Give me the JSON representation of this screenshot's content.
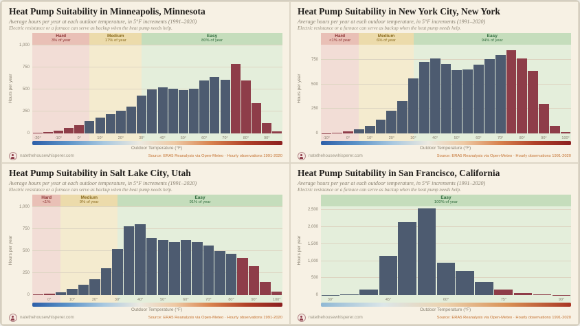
{
  "shared": {
    "subtitle": "Average hours per year at each outdoor temperature, in 5°F increments (1991–2020)",
    "note": "Electric resistance or a furnace can serve as backup when the heat pump needs help.",
    "ylabel": "Hours per year",
    "xlabel": "Outdoor Temperature (°F)",
    "site": "natethehousewhisperer.com",
    "source": "Source: ERA5 Reanalysis via Open-Meteo · Hourly observations 1991-2020"
  },
  "colors": {
    "bar": "#4d5b70",
    "bar_accent": "#8e3d49",
    "grid": "#ddd5c2",
    "boundary": "#ab9d83"
  },
  "charts": [
    {
      "title": "Heat Pump Suitability in Minneapolis, Minnesota",
      "chart_data": {
        "type": "bar",
        "xlabel_units": "°F",
        "x": [
          -20,
          -15,
          -10,
          -5,
          0,
          5,
          10,
          15,
          20,
          25,
          30,
          35,
          40,
          45,
          50,
          55,
          60,
          65,
          70,
          75,
          80,
          85,
          90,
          95
        ],
        "values": [
          8,
          18,
          35,
          60,
          95,
          140,
          180,
          215,
          260,
          300,
          430,
          500,
          525,
          505,
          490,
          505,
          600,
          640,
          605,
          790,
          600,
          340,
          120,
          25
        ],
        "ymax": 1000,
        "ytick_values": [
          0,
          250,
          500,
          750,
          1000
        ],
        "ytick_labels": [
          "0",
          "250",
          "500",
          "750",
          "1,000"
        ],
        "xticks": [
          -20,
          -10,
          0,
          10,
          20,
          30,
          40,
          50,
          60,
          70,
          80,
          90
        ],
        "hard_below": 5,
        "hot_from": 75,
        "zones": [
          {
            "label": "Hard",
            "pct": "3% of year",
            "from": null,
            "to": 5,
            "band": "#e9c0b6",
            "fill": "#f2ddd6",
            "text": "#8b3030"
          },
          {
            "label": "Medium",
            "pct": "17% of year",
            "from": 5,
            "to": 30,
            "band": "#ecdbab",
            "fill": "#f4ebcf",
            "text": "#8a6b1f"
          },
          {
            "label": "Easy",
            "pct": "80% of year",
            "from": 30,
            "to": null,
            "band": "#c5ddbc",
            "fill": "#e4eedb",
            "text": "#2f6b3c"
          }
        ],
        "axis_gradient": [
          "#2d5fa8",
          "#5b92c8",
          "#a8c8e0",
          "#ece9e0",
          "#eec9a4",
          "#d8824e",
          "#b04028",
          "#8c1f20"
        ]
      }
    },
    {
      "title": "Heat Pump Suitability in New York City, New York",
      "chart_data": {
        "type": "bar",
        "xlabel_units": "°F",
        "x": [
          -10,
          -5,
          0,
          5,
          10,
          15,
          20,
          25,
          30,
          35,
          40,
          45,
          50,
          55,
          60,
          65,
          70,
          75,
          80,
          85,
          90,
          95,
          100
        ],
        "values": [
          3,
          8,
          18,
          40,
          80,
          140,
          230,
          330,
          560,
          730,
          765,
          705,
          645,
          655,
          700,
          755,
          800,
          850,
          765,
          640,
          300,
          80,
          12
        ],
        "ymax": 900,
        "ytick_values": [
          0,
          250,
          500,
          750
        ],
        "ytick_labels": [
          "0",
          "250",
          "500",
          "750"
        ],
        "xticks": [
          -10,
          0,
          10,
          20,
          30,
          40,
          50,
          60,
          70,
          80,
          90,
          100
        ],
        "hard_below": 5,
        "hot_from": 75,
        "zones": [
          {
            "label": "Hard",
            "pct": "<1% of year",
            "from": null,
            "to": 5,
            "band": "#e9c0b6",
            "fill": "#f2ddd6",
            "text": "#8b3030"
          },
          {
            "label": "Medium",
            "pct": "6% of year",
            "from": 5,
            "to": 30,
            "band": "#ecdbab",
            "fill": "#f4ebcf",
            "text": "#8a6b1f"
          },
          {
            "label": "Easy",
            "pct": "94% of year",
            "from": 30,
            "to": null,
            "band": "#c5ddbc",
            "fill": "#e4eedb",
            "text": "#2f6b3c"
          }
        ],
        "axis_gradient": [
          "#2d5fa8",
          "#5b92c8",
          "#a8c8e0",
          "#ece9e0",
          "#eec9a4",
          "#d8824e",
          "#b04028",
          "#8c1f20"
        ]
      }
    },
    {
      "title": "Heat Pump Suitability in Salt Lake City, Utah",
      "chart_data": {
        "type": "bar",
        "xlabel_units": "°F",
        "x": [
          -5,
          0,
          5,
          10,
          15,
          20,
          25,
          30,
          35,
          40,
          45,
          50,
          55,
          60,
          65,
          70,
          75,
          80,
          85,
          90,
          95,
          100
        ],
        "values": [
          6,
          15,
          35,
          70,
          115,
          180,
          300,
          520,
          780,
          800,
          645,
          620,
          600,
          620,
          600,
          560,
          500,
          470,
          420,
          330,
          150,
          40
        ],
        "ymax": 1000,
        "ytick_values": [
          0,
          250,
          500,
          750,
          1000
        ],
        "ytick_labels": [
          "0",
          "250",
          "500",
          "750",
          "1,000"
        ],
        "xticks": [
          0,
          10,
          20,
          30,
          40,
          50,
          60,
          70,
          80,
          90,
          100
        ],
        "hard_below": 5,
        "hot_from": 85,
        "zones": [
          {
            "label": "Hard",
            "pct": "<1%",
            "from": null,
            "to": 5,
            "band": "#e9c0b6",
            "fill": "#f2ddd6",
            "text": "#8b3030"
          },
          {
            "label": "Medium",
            "pct": "9% of year",
            "from": 5,
            "to": 30,
            "band": "#ecdbab",
            "fill": "#f4ebcf",
            "text": "#8a6b1f"
          },
          {
            "label": "Easy",
            "pct": "91% of year",
            "from": 30,
            "to": null,
            "band": "#c5ddbc",
            "fill": "#e4eedb",
            "text": "#2f6b3c"
          }
        ],
        "axis_gradient": [
          "#2d5fa8",
          "#5b92c8",
          "#a8c8e0",
          "#ece9e0",
          "#eec9a4",
          "#d8824e",
          "#b04028",
          "#8c1f20"
        ]
      }
    },
    {
      "title": "Heat Pump Suitability in San Francisco, California",
      "chart_data": {
        "type": "bar",
        "xlabel_units": "°F",
        "x": [
          30,
          35,
          40,
          45,
          50,
          55,
          60,
          65,
          70,
          75,
          80,
          85,
          90
        ],
        "values": [
          5,
          30,
          170,
          1150,
          2150,
          2550,
          950,
          700,
          380,
          160,
          60,
          20,
          5
        ],
        "ymax": 2600,
        "ytick_values": [
          0,
          500,
          1000,
          1500,
          2000,
          2500
        ],
        "ytick_labels": [
          "0",
          "500",
          "1,000",
          "1,500",
          "2,000",
          "2,500"
        ],
        "xticks": [
          30,
          45,
          60,
          75,
          90
        ],
        "hard_below": -999,
        "hot_from": 75,
        "zones": [
          {
            "label": "Easy",
            "pct": "100% of year",
            "from": null,
            "to": null,
            "band": "#c5ddbc",
            "fill": "#e4eedb",
            "text": "#2f6b3c"
          }
        ],
        "axis_gradient": [
          "#8fb8d4",
          "#dce6e8",
          "#ecd2ae",
          "#d89055",
          "#a93524"
        ]
      }
    }
  ]
}
